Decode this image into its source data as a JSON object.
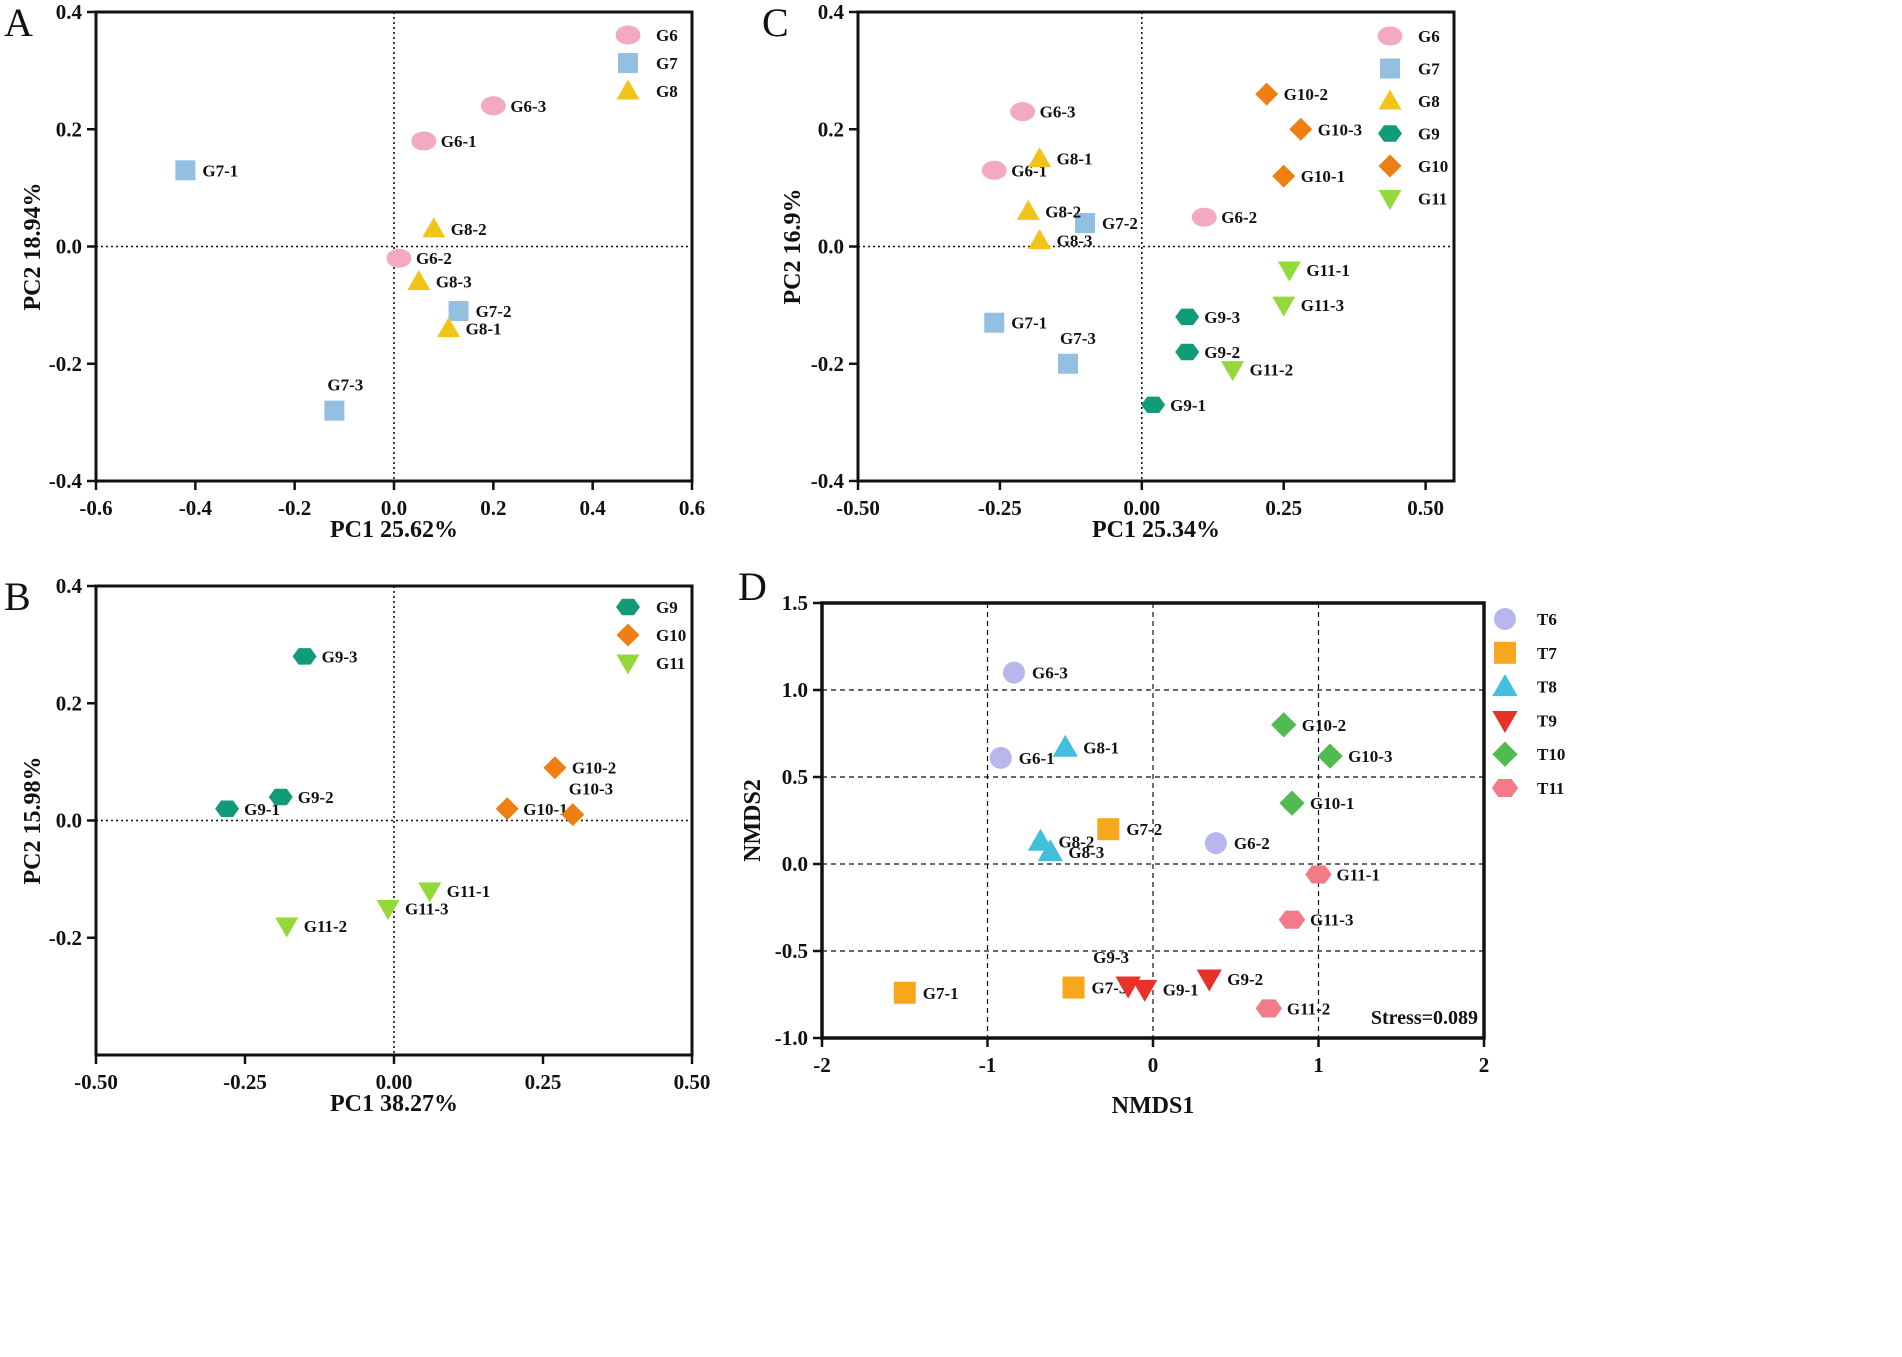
{
  "colors": {
    "G6": "#f4a9c2",
    "G7": "#93bfe3",
    "G8": "#f0c419",
    "G9": "#129b79",
    "G10": "#f07f12",
    "G11": "#93d93a",
    "T6": "#b8b6ec",
    "T7": "#f6a71c",
    "T8": "#42bfdc",
    "T9": "#e8312b",
    "T10": "#4fbb51",
    "T11": "#f27b87"
  },
  "chart_data": [
    {
      "panel": "A",
      "type": "scatter",
      "xlabel": "PC1 25.62%",
      "ylabel": "PC2 18.94%",
      "xlim": [
        -0.6,
        0.6
      ],
      "ylim": [
        -0.4,
        0.4
      ],
      "xticks": [
        -0.6,
        -0.4,
        -0.2,
        0.0,
        0.2,
        0.4,
        0.6
      ],
      "xtick_labels": [
        "-0.6",
        "-0.4",
        "-0.2",
        "0.0",
        "0.2",
        "0.4",
        "0.6"
      ],
      "yticks": [
        -0.4,
        -0.2,
        0.0,
        0.2,
        0.4
      ],
      "ytick_labels": [
        "-0.4",
        "-0.2",
        "0.0",
        "0.2",
        "0.4"
      ],
      "legend": [
        {
          "name": "G6",
          "shape": "ellipse",
          "color": "G6"
        },
        {
          "name": "G7",
          "shape": "square",
          "color": "G7"
        },
        {
          "name": "G8",
          "shape": "triangle-up",
          "color": "G8"
        }
      ],
      "points": [
        {
          "label": "G6-1",
          "group": "G6",
          "x": 0.06,
          "y": 0.18
        },
        {
          "label": "G6-2",
          "group": "G6",
          "x": 0.01,
          "y": -0.02
        },
        {
          "label": "G6-3",
          "group": "G6",
          "x": 0.2,
          "y": 0.24
        },
        {
          "label": "G7-1",
          "group": "G7",
          "x": -0.42,
          "y": 0.13
        },
        {
          "label": "G7-2",
          "group": "G7",
          "x": 0.13,
          "y": -0.11
        },
        {
          "label": "G7-3",
          "group": "G7",
          "x": -0.12,
          "y": -0.28
        },
        {
          "label": "G8-1",
          "group": "G8",
          "x": 0.11,
          "y": -0.14
        },
        {
          "label": "G8-2",
          "group": "G8",
          "x": 0.08,
          "y": 0.03
        },
        {
          "label": "G8-3",
          "group": "G8",
          "x": 0.05,
          "y": -0.06
        }
      ]
    },
    {
      "panel": "B",
      "type": "scatter",
      "xlabel": "PC1 38.27%",
      "ylabel": "PC2 15.98%",
      "xlim": [
        -0.5,
        0.5
      ],
      "ylim": [
        -0.4,
        0.4
      ],
      "xticks": [
        -0.5,
        -0.25,
        0.0,
        0.25,
        0.5
      ],
      "xtick_labels": [
        "-0.50",
        "-0.25",
        "0.00",
        "0.25",
        "0.50"
      ],
      "yticks": [
        -0.2,
        0.0,
        0.2,
        0.4
      ],
      "ytick_labels": [
        "-0.2",
        "0.0",
        "0.2",
        "0.4"
      ],
      "legend": [
        {
          "name": "G9",
          "shape": "hexagon",
          "color": "G9"
        },
        {
          "name": "G10",
          "shape": "diamond",
          "color": "G10"
        },
        {
          "name": "G11",
          "shape": "triangle-down",
          "color": "G11"
        }
      ],
      "points": [
        {
          "label": "G9-1",
          "group": "G9",
          "x": -0.28,
          "y": 0.02
        },
        {
          "label": "G9-2",
          "group": "G9",
          "x": -0.19,
          "y": 0.04
        },
        {
          "label": "G9-3",
          "group": "G9",
          "x": -0.15,
          "y": 0.28
        },
        {
          "label": "G10-1",
          "group": "G10",
          "x": 0.19,
          "y": 0.02
        },
        {
          "label": "G10-2",
          "group": "G10",
          "x": 0.27,
          "y": 0.09
        },
        {
          "label": "G10-3",
          "group": "G10",
          "x": 0.3,
          "y": 0.01
        },
        {
          "label": "G11-1",
          "group": "G11",
          "x": 0.06,
          "y": -0.12
        },
        {
          "label": "G11-2",
          "group": "G11",
          "x": -0.18,
          "y": -0.18
        },
        {
          "label": "G11-3",
          "group": "G11",
          "x": -0.01,
          "y": -0.15
        }
      ]
    },
    {
      "panel": "C",
      "type": "scatter",
      "xlabel": "PC1 25.34%",
      "ylabel": "PC2 16.9%",
      "xlim": [
        -0.5,
        0.55
      ],
      "ylim": [
        -0.4,
        0.4
      ],
      "xticks": [
        -0.5,
        -0.25,
        0.0,
        0.25,
        0.5
      ],
      "xtick_labels": [
        "-0.50",
        "-0.25",
        "0.00",
        "0.25",
        "0.50"
      ],
      "yticks": [
        -0.4,
        -0.2,
        0.0,
        0.2,
        0.4
      ],
      "ytick_labels": [
        "-0.4",
        "-0.2",
        "0.0",
        "0.2",
        "0.4"
      ],
      "legend": [
        {
          "name": "G6",
          "shape": "ellipse",
          "color": "G6"
        },
        {
          "name": "G7",
          "shape": "square",
          "color": "G7"
        },
        {
          "name": "G8",
          "shape": "triangle-up",
          "color": "G8"
        },
        {
          "name": "G9",
          "shape": "hexagon",
          "color": "G9"
        },
        {
          "name": "G10",
          "shape": "diamond",
          "color": "G10"
        },
        {
          "name": "G11",
          "shape": "triangle-down",
          "color": "G11"
        }
      ],
      "points": [
        {
          "label": "G6-1",
          "group": "G6",
          "x": -0.26,
          "y": 0.13
        },
        {
          "label": "G6-2",
          "group": "G6",
          "x": 0.11,
          "y": 0.05
        },
        {
          "label": "G6-3",
          "group": "G6",
          "x": -0.21,
          "y": 0.23
        },
        {
          "label": "G7-1",
          "group": "G7",
          "x": -0.26,
          "y": -0.13
        },
        {
          "label": "G7-2",
          "group": "G7",
          "x": -0.1,
          "y": 0.04
        },
        {
          "label": "G7-3",
          "group": "G7",
          "x": -0.13,
          "y": -0.2
        },
        {
          "label": "G8-1",
          "group": "G8",
          "x": -0.18,
          "y": 0.15
        },
        {
          "label": "G8-2",
          "group": "G8",
          "x": -0.2,
          "y": 0.06
        },
        {
          "label": "G8-3",
          "group": "G8",
          "x": -0.18,
          "y": 0.01
        },
        {
          "label": "G9-1",
          "group": "G9",
          "x": 0.02,
          "y": -0.27
        },
        {
          "label": "G9-2",
          "group": "G9",
          "x": 0.08,
          "y": -0.18
        },
        {
          "label": "G9-3",
          "group": "G9",
          "x": 0.08,
          "y": -0.12
        },
        {
          "label": "G10-1",
          "group": "G10",
          "x": 0.25,
          "y": 0.12
        },
        {
          "label": "G10-2",
          "group": "G10",
          "x": 0.22,
          "y": 0.26
        },
        {
          "label": "G10-3",
          "group": "G10",
          "x": 0.28,
          "y": 0.2
        },
        {
          "label": "G11-1",
          "group": "G11",
          "x": 0.26,
          "y": -0.04
        },
        {
          "label": "G11-2",
          "group": "G11",
          "x": 0.16,
          "y": -0.21
        },
        {
          "label": "G11-3",
          "group": "G11",
          "x": 0.25,
          "y": -0.1
        }
      ]
    },
    {
      "panel": "D",
      "type": "scatter",
      "xlabel": "NMDS1",
      "ylabel": "NMDS2",
      "xlim": [
        -2,
        2
      ],
      "ylim": [
        -1.0,
        1.5
      ],
      "xticks": [
        -2,
        -1,
        0,
        1,
        2
      ],
      "xtick_labels": [
        "-2",
        "-1",
        "0",
        "1",
        "2"
      ],
      "yticks": [
        -1.0,
        -0.5,
        0.0,
        0.5,
        1.0,
        1.5
      ],
      "ytick_labels": [
        "-1.0",
        "-0.5",
        "0.0",
        "0.5",
        "1.0",
        "1.5"
      ],
      "grid_x": [
        -1,
        0,
        1
      ],
      "grid_y": [
        -0.5,
        0.0,
        0.5,
        1.0
      ],
      "annotation": "Stress=0.089",
      "legend": [
        {
          "name": "T6",
          "shape": "circle",
          "color": "T6"
        },
        {
          "name": "T7",
          "shape": "square",
          "color": "T7"
        },
        {
          "name": "T8",
          "shape": "triangle-up",
          "color": "T8"
        },
        {
          "name": "T9",
          "shape": "triangle-down",
          "color": "T9"
        },
        {
          "name": "T10",
          "shape": "diamond",
          "color": "T10"
        },
        {
          "name": "T11",
          "shape": "hexagon",
          "color": "T11"
        }
      ],
      "points": [
        {
          "label": "G6-1",
          "group": "T6",
          "x": -0.92,
          "y": 0.61
        },
        {
          "label": "G6-2",
          "group": "T6",
          "x": 0.38,
          "y": 0.12
        },
        {
          "label": "G6-3",
          "group": "T6",
          "x": -0.84,
          "y": 1.1
        },
        {
          "label": "G7-1",
          "group": "T7",
          "x": -1.5,
          "y": -0.74
        },
        {
          "label": "G7-2",
          "group": "T7",
          "x": -0.27,
          "y": 0.2
        },
        {
          "label": "G7-3",
          "group": "T7",
          "x": -0.48,
          "y": -0.71
        },
        {
          "label": "G8-1",
          "group": "T8",
          "x": -0.53,
          "y": 0.67
        },
        {
          "label": "G8-2",
          "group": "T8",
          "x": -0.68,
          "y": 0.13
        },
        {
          "label": "G8-3",
          "group": "T8",
          "x": -0.62,
          "y": 0.07
        },
        {
          "label": "G9-1",
          "group": "T9",
          "x": -0.05,
          "y": -0.72
        },
        {
          "label": "G9-2",
          "group": "T9",
          "x": 0.34,
          "y": -0.66
        },
        {
          "label": "G9-3",
          "group": "T9",
          "x": -0.15,
          "y": -0.7
        },
        {
          "label": "G10-1",
          "group": "T10",
          "x": 0.84,
          "y": 0.35
        },
        {
          "label": "G10-2",
          "group": "T10",
          "x": 0.79,
          "y": 0.8
        },
        {
          "label": "G10-3",
          "group": "T10",
          "x": 1.07,
          "y": 0.62
        },
        {
          "label": "G11-1",
          "group": "T11",
          "x": 1.0,
          "y": -0.06
        },
        {
          "label": "G11-2",
          "group": "T11",
          "x": 0.7,
          "y": -0.83
        },
        {
          "label": "G11-3",
          "group": "T11",
          "x": 0.84,
          "y": -0.32
        }
      ]
    }
  ]
}
